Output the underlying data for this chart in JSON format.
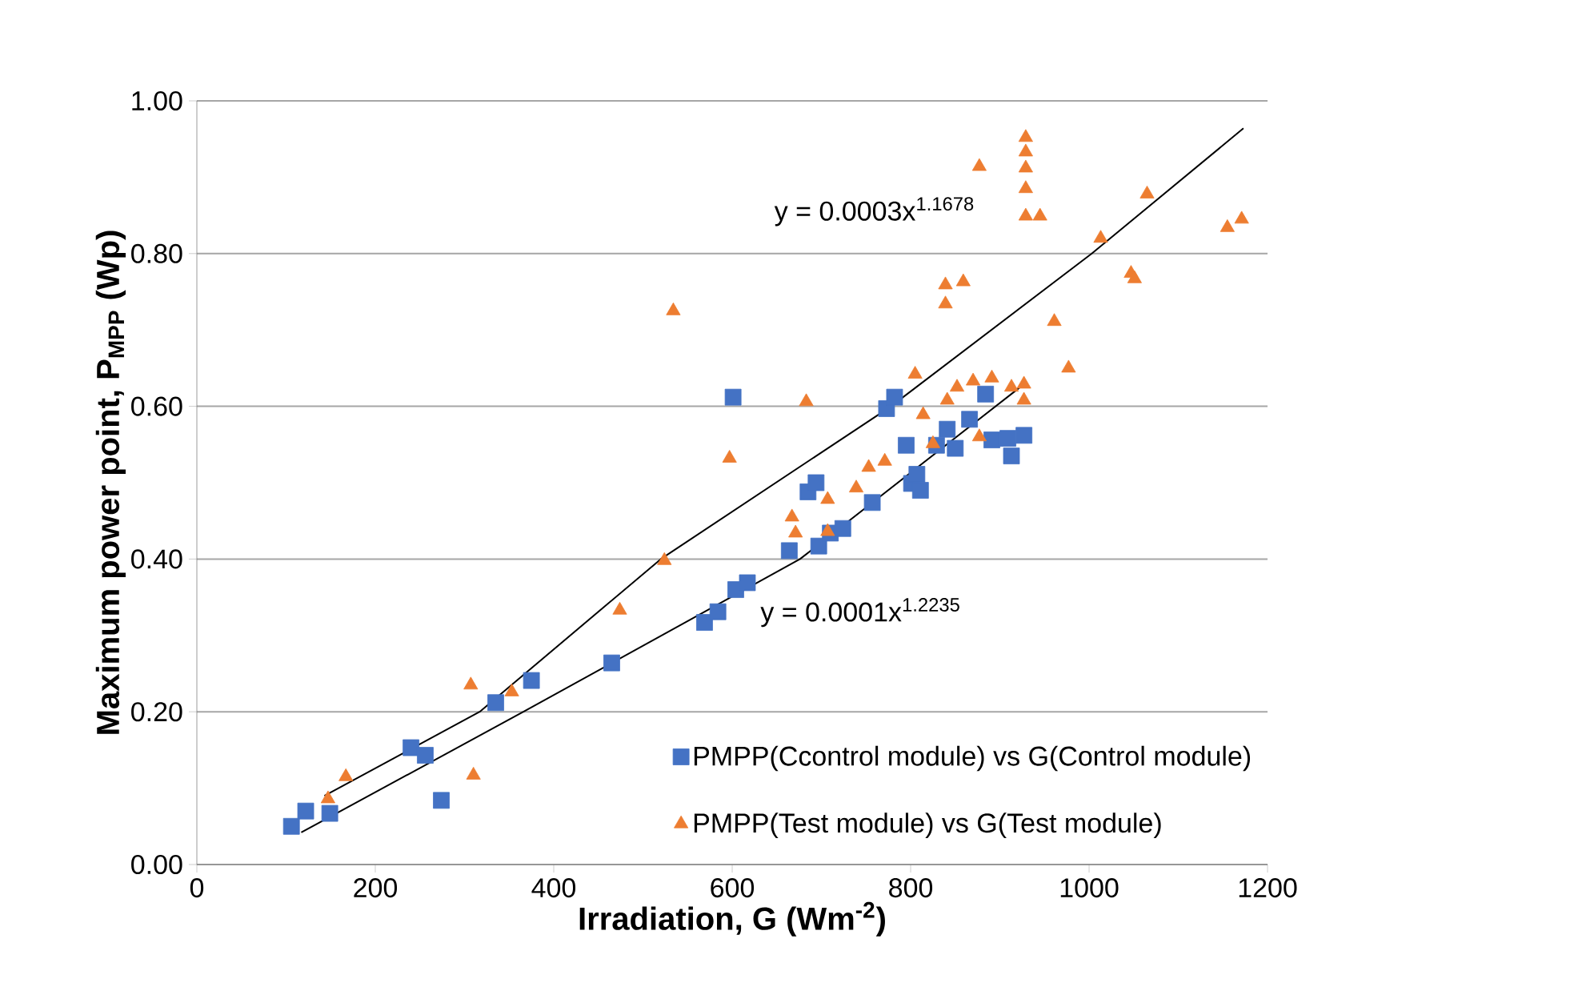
{
  "chart_data": {
    "type": "scatter",
    "xlabel": "Irradiation, G (Wm$^{-2}$)",
    "ylabel": "Maximum power point, P$_{MPP}$ (Wp)",
    "xlim": [
      0,
      1200
    ],
    "xticks": [
      0,
      200,
      400,
      600,
      800,
      1000,
      1200
    ],
    "ylim": [
      0,
      1
    ],
    "yticks": [
      {
        "value": 0,
        "label": "0.00"
      },
      {
        "value": 0.2,
        "label": "0.20"
      },
      {
        "value": 0.4,
        "label": "0.40"
      },
      {
        "value": 0.6,
        "label": "0.60"
      },
      {
        "value": 0.8,
        "label": "0.80"
      },
      {
        "value": 1,
        "label": "1.00"
      }
    ],
    "grid": "y",
    "legend": "bottom right",
    "annotations": [
      "y = 0.0003x$^{1.1678}$",
      "y = 0.0001x$^{1.2235}$"
    ],
    "series": [
      {
        "name": "PMPP(Ccontrol module) vs G(Control module)",
        "color": "#4472c4",
        "marker": "square",
        "x": [
          106,
          122,
          149,
          240,
          256,
          274,
          335,
          375,
          465,
          569,
          584,
          604,
          617,
          601,
          664,
          685,
          694,
          697,
          710,
          724,
          757,
          773,
          782,
          795,
          801,
          807,
          811,
          829,
          841,
          850,
          866,
          884,
          891,
          909,
          913,
          927
        ],
        "values": [
          0.05,
          0.07,
          0.067,
          0.153,
          0.143,
          0.084,
          0.212,
          0.241,
          0.264,
          0.317,
          0.331,
          0.36,
          0.369,
          0.612,
          0.411,
          0.488,
          0.5,
          0.417,
          0.434,
          0.44,
          0.474,
          0.597,
          0.612,
          0.549,
          0.499,
          0.511,
          0.49,
          0.549,
          0.57,
          0.545,
          0.583,
          0.616,
          0.556,
          0.558,
          0.535,
          0.562
        ]
      },
      {
        "name": "PMPP(Test module) vs G(Test module)",
        "color": "#ed7d31",
        "marker": "triangle",
        "x": [
          147,
          167,
          307,
          310,
          353,
          474,
          524,
          534,
          597,
          683,
          667,
          671,
          707,
          707,
          739,
          753,
          771,
          805,
          814,
          825,
          841,
          852,
          870,
          877,
          891,
          913,
          927,
          927,
          839,
          839,
          859,
          877,
          929,
          929,
          929,
          929,
          929,
          945,
          961,
          977,
          1013,
          1047,
          1051,
          1065,
          1155,
          1171
        ],
        "values": [
          0.086,
          0.115,
          0.235,
          0.117,
          0.226,
          0.333,
          0.398,
          0.725,
          0.532,
          0.606,
          0.455,
          0.434,
          0.478,
          0.436,
          0.493,
          0.52,
          0.528,
          0.642,
          0.589,
          0.551,
          0.608,
          0.625,
          0.633,
          0.56,
          0.637,
          0.625,
          0.629,
          0.608,
          0.759,
          0.734,
          0.763,
          0.914,
          0.952,
          0.933,
          0.912,
          0.885,
          0.849,
          0.849,
          0.711,
          0.65,
          0.82,
          0.774,
          0.767,
          0.878,
          0.834,
          0.845
        ]
      },
      {
        "type": "line",
        "color": "#000000",
        "marker": "none",
        "x": [
          117,
          366,
          676,
          927
        ],
        "values": [
          0.042,
          0.2,
          0.4,
          0.629
        ]
      },
      {
        "type": "line",
        "color": "#000000",
        "marker": "none",
        "x": [
          143,
          317,
          520,
          778,
          1003,
          1173
        ],
        "values": [
          0.09,
          0.2,
          0.4,
          0.6,
          0.8,
          0.964
        ]
      }
    ]
  }
}
